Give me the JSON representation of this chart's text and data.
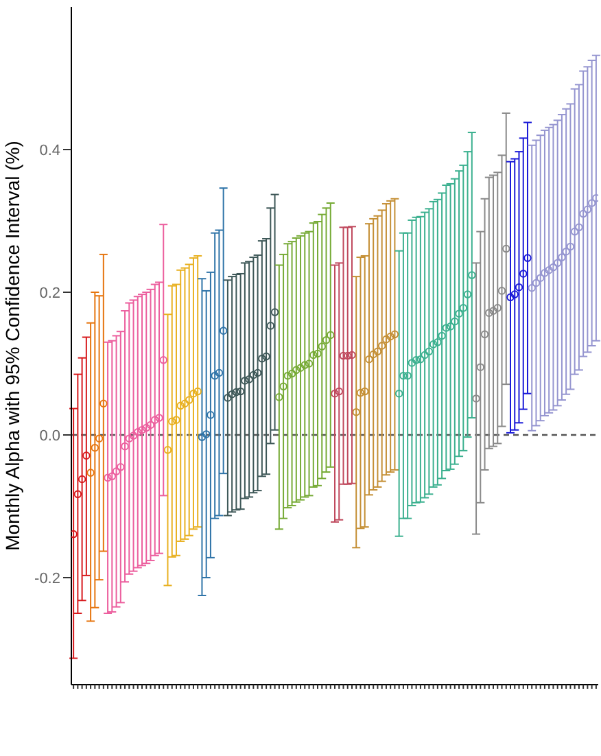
{
  "chart_data": {
    "type": "scatter",
    "ylabel": "Monthly Alpha with 95% Confidence Interval (%)",
    "categories": [
      null,
      null,
      null,
      null,
      null,
      null,
      null,
      null,
      null,
      null,
      null,
      null,
      null,
      null,
      null,
      null,
      null,
      null,
      null,
      null,
      null,
      null,
      null,
      null,
      null,
      null,
      null,
      null,
      null,
      null,
      null,
      null,
      null,
      null,
      null,
      null,
      null,
      null,
      null,
      null,
      null,
      null,
      null,
      null,
      null,
      null,
      null,
      null,
      null,
      null,
      null,
      null,
      null,
      null,
      null,
      null,
      null,
      null,
      null,
      null,
      null,
      null,
      null,
      null,
      null,
      null,
      null,
      null,
      null,
      null,
      null,
      null,
      null,
      null,
      null,
      null,
      null,
      null,
      null,
      null,
      null,
      null,
      null,
      null,
      null,
      null,
      null,
      null,
      null,
      null,
      null,
      null,
      null,
      null,
      null,
      null,
      null,
      null,
      null,
      null,
      null,
      null,
      null,
      null,
      null,
      null,
      null,
      null,
      null,
      null,
      null,
      null,
      null,
      null,
      null,
      null,
      null,
      null,
      null,
      null,
      null,
      null,
      null
    ],
    "series": [
      {
        "values": [
          -0.139,
          -0.083,
          -0.062,
          -0.029,
          -0.053,
          -0.018,
          -0.005,
          0.044,
          -0.06,
          -0.058,
          -0.051,
          -0.045,
          -0.016,
          -0.005,
          -0.001,
          0.004,
          0.007,
          0.01,
          0.014,
          0.021,
          0.024,
          0.105,
          -0.021,
          0.019,
          0.021,
          0.041,
          0.044,
          0.049,
          0.058,
          0.061,
          -0.003,
          0.001,
          0.028,
          0.083,
          0.087,
          0.146,
          0.052,
          0.057,
          0.06,
          0.061,
          0.076,
          0.078,
          0.084,
          0.087,
          0.107,
          0.11,
          0.153,
          0.172,
          0.053,
          0.068,
          0.083,
          0.086,
          0.091,
          0.094,
          0.098,
          0.1,
          0.112,
          0.114,
          0.124,
          0.133,
          0.14,
          0.058,
          0.061,
          0.111,
          0.111,
          0.112,
          0.032,
          0.059,
          0.061,
          0.106,
          0.113,
          0.117,
          0.125,
          0.134,
          0.138,
          0.141,
          0.058,
          0.083,
          0.083,
          0.101,
          0.105,
          0.106,
          0.112,
          0.117,
          0.127,
          0.13,
          0.139,
          0.15,
          0.152,
          0.159,
          0.17,
          0.178,
          0.197,
          0.224,
          0.051,
          0.095,
          0.141,
          0.171,
          0.174,
          0.178,
          0.202,
          0.261,
          0.193,
          0.197,
          0.207,
          0.226,
          0.248,
          0.206,
          0.213,
          0.22,
          0.227,
          0.231,
          0.235,
          0.241,
          0.249,
          0.257,
          0.264,
          0.285,
          0.291,
          0.31,
          0.316,
          0.325,
          0.332
        ],
        "errors": [
          [
            -0.313,
            0.037
          ],
          [
            -0.25,
            0.085
          ],
          [
            -0.232,
            0.108
          ],
          [
            -0.197,
            0.137
          ],
          [
            -0.261,
            0.157
          ],
          [
            -0.242,
            0.2
          ],
          [
            -0.203,
            0.195
          ],
          [
            -0.163,
            0.253
          ],
          [
            -0.25,
            0.13
          ],
          [
            -0.248,
            0.132
          ],
          [
            -0.241,
            0.139
          ],
          [
            -0.235,
            0.145
          ],
          [
            -0.206,
            0.174
          ],
          [
            -0.195,
            0.185
          ],
          [
            -0.191,
            0.189
          ],
          [
            -0.186,
            0.194
          ],
          [
            -0.183,
            0.197
          ],
          [
            -0.18,
            0.2
          ],
          [
            -0.176,
            0.204
          ],
          [
            -0.169,
            0.211
          ],
          [
            -0.166,
            0.214
          ],
          [
            -0.085,
            0.295
          ],
          [
            -0.211,
            0.169
          ],
          [
            -0.171,
            0.209
          ],
          [
            -0.169,
            0.211
          ],
          [
            -0.149,
            0.231
          ],
          [
            -0.146,
            0.234
          ],
          [
            -0.141,
            0.239
          ],
          [
            -0.132,
            0.248
          ],
          [
            -0.129,
            0.251
          ],
          [
            -0.225,
            0.219
          ],
          [
            -0.2,
            0.202
          ],
          [
            -0.172,
            0.228
          ],
          [
            -0.117,
            0.283
          ],
          [
            -0.113,
            0.287
          ],
          [
            -0.054,
            0.346
          ],
          [
            -0.113,
            0.217
          ],
          [
            -0.108,
            0.222
          ],
          [
            -0.105,
            0.225
          ],
          [
            -0.104,
            0.226
          ],
          [
            -0.089,
            0.241
          ],
          [
            -0.087,
            0.243
          ],
          [
            -0.081,
            0.249
          ],
          [
            -0.078,
            0.252
          ],
          [
            -0.058,
            0.272
          ],
          [
            -0.055,
            0.275
          ],
          [
            -0.012,
            0.318
          ],
          [
            0.007,
            0.337
          ],
          [
            -0.132,
            0.238
          ],
          [
            -0.117,
            0.253
          ],
          [
            -0.102,
            0.268
          ],
          [
            -0.099,
            0.271
          ],
          [
            -0.094,
            0.276
          ],
          [
            -0.091,
            0.279
          ],
          [
            -0.087,
            0.283
          ],
          [
            -0.085,
            0.285
          ],
          [
            -0.073,
            0.297
          ],
          [
            -0.071,
            0.299
          ],
          [
            -0.061,
            0.309
          ],
          [
            -0.052,
            0.318
          ],
          [
            -0.045,
            0.325
          ],
          [
            -0.122,
            0.238
          ],
          [
            -0.119,
            0.241
          ],
          [
            -0.069,
            0.291
          ],
          [
            -0.069,
            0.291
          ],
          [
            -0.068,
            0.292
          ],
          [
            -0.158,
            0.222
          ],
          [
            -0.131,
            0.249
          ],
          [
            -0.129,
            0.251
          ],
          [
            -0.084,
            0.296
          ],
          [
            -0.077,
            0.303
          ],
          [
            -0.073,
            0.307
          ],
          [
            -0.065,
            0.315
          ],
          [
            -0.056,
            0.324
          ],
          [
            -0.052,
            0.328
          ],
          [
            -0.049,
            0.331
          ],
          [
            -0.142,
            0.258
          ],
          [
            -0.117,
            0.283
          ],
          [
            -0.117,
            0.283
          ],
          [
            -0.099,
            0.301
          ],
          [
            -0.095,
            0.305
          ],
          [
            -0.094,
            0.306
          ],
          [
            -0.088,
            0.312
          ],
          [
            -0.083,
            0.317
          ],
          [
            -0.073,
            0.327
          ],
          [
            -0.07,
            0.33
          ],
          [
            -0.061,
            0.339
          ],
          [
            -0.05,
            0.35
          ],
          [
            -0.048,
            0.352
          ],
          [
            -0.041,
            0.359
          ],
          [
            -0.03,
            0.37
          ],
          [
            -0.022,
            0.378
          ],
          [
            -0.003,
            0.397
          ],
          [
            0.024,
            0.424
          ],
          [
            -0.139,
            0.241
          ],
          [
            -0.095,
            0.285
          ],
          [
            -0.049,
            0.331
          ],
          [
            -0.019,
            0.361
          ],
          [
            -0.016,
            0.364
          ],
          [
            -0.012,
            0.368
          ],
          [
            0.012,
            0.392
          ],
          [
            0.071,
            0.451
          ],
          [
            0.003,
            0.383
          ],
          [
            0.007,
            0.387
          ],
          [
            0.017,
            0.397
          ],
          [
            0.036,
            0.416
          ],
          [
            0.058,
            0.438
          ],
          [
            0.006,
            0.406
          ],
          [
            0.013,
            0.413
          ],
          [
            0.02,
            0.42
          ],
          [
            0.027,
            0.427
          ],
          [
            0.031,
            0.431
          ],
          [
            0.035,
            0.435
          ],
          [
            0.041,
            0.441
          ],
          [
            0.049,
            0.449
          ],
          [
            0.057,
            0.457
          ],
          [
            0.064,
            0.464
          ],
          [
            0.085,
            0.485
          ],
          [
            0.091,
            0.491
          ],
          [
            0.11,
            0.51
          ],
          [
            0.116,
            0.516
          ],
          [
            0.125,
            0.525
          ],
          [
            0.132,
            0.532
          ]
        ],
        "colors": [
          "#d7191c",
          "#d7191c",
          "#d7191c",
          "#d7191c",
          "#e6750f",
          "#e6750f",
          "#e6750f",
          "#e6750f",
          "#ec5f9e",
          "#ec5f9e",
          "#ec5f9e",
          "#ec5f9e",
          "#ec5f9e",
          "#ec5f9e",
          "#ec5f9e",
          "#ec5f9e",
          "#ec5f9e",
          "#ec5f9e",
          "#ec5f9e",
          "#ec5f9e",
          "#ec5f9e",
          "#ec5f9e",
          "#e8b020",
          "#e8b020",
          "#e8b020",
          "#e8b020",
          "#e8b020",
          "#e8b020",
          "#e8b020",
          "#e8b020",
          "#2f74a8",
          "#2f74a8",
          "#2f74a8",
          "#2f74a8",
          "#2f74a8",
          "#2f74a8",
          "#3e5858",
          "#3e5858",
          "#3e5858",
          "#3e5858",
          "#3e5858",
          "#3e5858",
          "#3e5858",
          "#3e5858",
          "#3e5858",
          "#3e5858",
          "#3e5858",
          "#3e5858",
          "#76aa35",
          "#76aa35",
          "#76aa35",
          "#76aa35",
          "#76aa35",
          "#76aa35",
          "#76aa35",
          "#76aa35",
          "#76aa35",
          "#76aa35",
          "#76aa35",
          "#76aa35",
          "#76aa35",
          "#c04a5e",
          "#c04a5e",
          "#c04a5e",
          "#c04a5e",
          "#c04a5e",
          "#c48f35",
          "#c48f35",
          "#c48f35",
          "#c48f35",
          "#c48f35",
          "#c48f35",
          "#c48f35",
          "#c48f35",
          "#c48f35",
          "#c48f35",
          "#3bb08f",
          "#3bb08f",
          "#3bb08f",
          "#3bb08f",
          "#3bb08f",
          "#3bb08f",
          "#3bb08f",
          "#3bb08f",
          "#3bb08f",
          "#3bb08f",
          "#3bb08f",
          "#3bb08f",
          "#3bb08f",
          "#3bb08f",
          "#3bb08f",
          "#3bb08f",
          "#3bb08f",
          "#3bb08f",
          "#8a8a8a",
          "#8a8a8a",
          "#8a8a8a",
          "#8a8a8a",
          "#8a8a8a",
          "#8a8a8a",
          "#8a8a8a",
          "#8a8a8a",
          "#1a1ad8",
          "#1a1ad8",
          "#1a1ad8",
          "#1a1ad8",
          "#1a1ad8",
          "#9595d0",
          "#9595d0",
          "#9595d0",
          "#9595d0",
          "#9595d0",
          "#9595d0",
          "#9595d0",
          "#9595d0",
          "#9595d0",
          "#9595d0",
          "#9595d0",
          "#9595d0",
          "#9595d0",
          "#9595d0",
          "#9595d0",
          "#9595d0"
        ]
      }
    ],
    "ylim": [
      -0.35,
      0.6
    ],
    "yticks": [
      -0.2,
      {
        "value": 0,
        "label": "0.0"
      },
      0.2,
      0.4
    ],
    "ref_lines": [
      {
        "axis": "y",
        "value": 0,
        "color": "#555555",
        "line_style": "dashed"
      }
    ],
    "tick_labels": "y",
    "marker": "circle"
  }
}
